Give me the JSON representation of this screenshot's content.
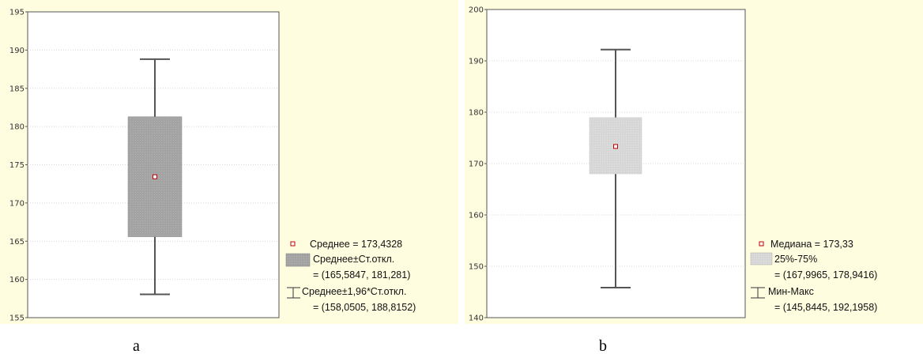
{
  "chart_data": [
    {
      "id": "a",
      "type": "boxplot",
      "caption": "a",
      "ylim": [
        155,
        195
      ],
      "yticks": [
        155,
        160,
        165,
        170,
        175,
        180,
        185,
        190,
        195
      ],
      "grid": true,
      "center": 173.4328,
      "box": [
        165.5847,
        181.281
      ],
      "whiskers": [
        158.0505,
        188.8152
      ],
      "box_color": "#a9a9a9",
      "legend": {
        "center_label": "Среднее = 173,4328",
        "box_label": "Среднее±Ст.откл.",
        "box_range": "= (165,5847, 181,281)",
        "whisker_label": "Среднее±1,96*Ст.откл.",
        "whisker_range": "= (158,0505, 188,8152)"
      }
    },
    {
      "id": "b",
      "type": "boxplot",
      "caption": "b",
      "ylim": [
        140,
        200
      ],
      "yticks": [
        140,
        150,
        160,
        170,
        180,
        190,
        200
      ],
      "grid": true,
      "center": 173.33,
      "box": [
        167.9965,
        178.9416
      ],
      "whiskers": [
        145.8445,
        192.1958
      ],
      "box_color": "#dcdcdc",
      "legend": {
        "center_label": "Медиана = 173,33",
        "box_label": "25%-75%",
        "box_range": "= (167,9965, 178,9416)",
        "whisker_label": "Мин-Макс",
        "whisker_range": "= (145,8445, 192,1958)"
      }
    }
  ],
  "colors": {
    "panel_background": "#fffde0",
    "plot_background": "#ffffff",
    "whisker": "#555555",
    "center_marker": "#c00000"
  }
}
